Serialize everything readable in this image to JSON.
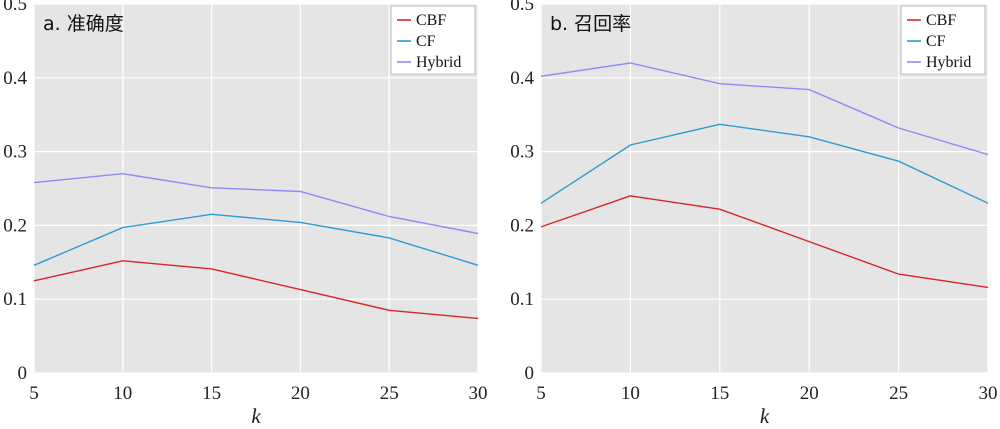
{
  "colors": {
    "CBF": "#d62728",
    "CF": "#2e9bd6",
    "Hybrid": "#8d8cf5",
    "panel_bg": "#e5e5e5",
    "grid": "#ffffff"
  },
  "chart_data": [
    {
      "type": "line",
      "title": "a. 准确度",
      "xlabel": "k",
      "ylabel": "",
      "x": [
        5,
        10,
        15,
        20,
        25,
        30
      ],
      "xlim": [
        5,
        30
      ],
      "ylim": [
        0,
        0.5
      ],
      "xticks": [
        "5",
        "10",
        "15",
        "20",
        "25",
        "30"
      ],
      "yticks": [
        "0",
        "0.1",
        "0.2",
        "0.3",
        "0.4",
        "0.5"
      ],
      "legend": "top-right",
      "grid": true,
      "series": [
        {
          "name": "CBF",
          "values": [
            0.125,
            0.152,
            0.141,
            0.113,
            0.085,
            0.074
          ]
        },
        {
          "name": "CF",
          "values": [
            0.146,
            0.197,
            0.215,
            0.204,
            0.183,
            0.146
          ]
        },
        {
          "name": "Hybrid",
          "values": [
            0.258,
            0.27,
            0.251,
            0.246,
            0.212,
            0.189
          ]
        }
      ]
    },
    {
      "type": "line",
      "title": "b. 召回率",
      "xlabel": "k",
      "ylabel": "",
      "x": [
        5,
        10,
        15,
        20,
        25,
        30
      ],
      "xlim": [
        5,
        30
      ],
      "ylim": [
        0,
        0.5
      ],
      "xticks": [
        "5",
        "10",
        "15",
        "20",
        "25",
        "30"
      ],
      "yticks": [
        "0",
        "0.1",
        "0.2",
        "0.3",
        "0.4",
        "0.5"
      ],
      "legend": "top-right",
      "grid": true,
      "series": [
        {
          "name": "CBF",
          "values": [
            0.198,
            0.24,
            0.222,
            0.178,
            0.134,
            0.116
          ]
        },
        {
          "name": "CF",
          "values": [
            0.23,
            0.309,
            0.337,
            0.32,
            0.287,
            0.23
          ]
        },
        {
          "name": "Hybrid",
          "values": [
            0.402,
            0.42,
            0.392,
            0.384,
            0.332,
            0.296
          ]
        }
      ]
    }
  ]
}
